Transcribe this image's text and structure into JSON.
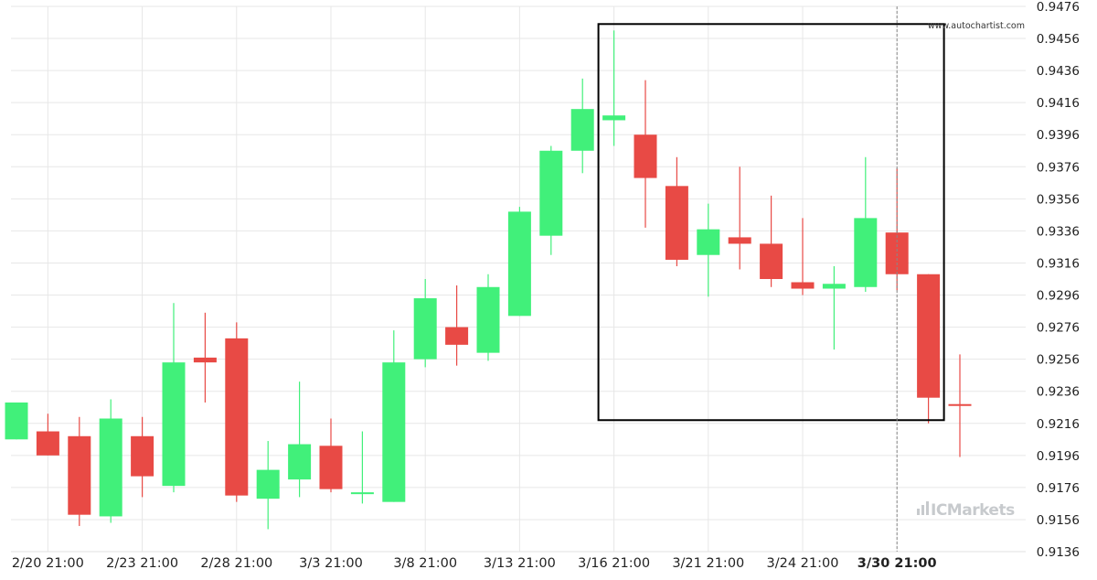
{
  "watermark": "www.autochartist.com",
  "broker_logo": "ICMarkets",
  "colors": {
    "bull": "#41f07a",
    "bear": "#e84a45",
    "grid": "#e7e7e7",
    "axis_text": "#222222",
    "box": "#000000"
  },
  "chart_data": {
    "type": "candlestick",
    "x_tick_labels": [
      "2/20 21:00",
      "2/23 21:00",
      "2/28 21:00",
      "3/3 21:00",
      "3/8 21:00",
      "3/13 21:00",
      "3/16 21:00",
      "3/21 21:00",
      "3/24 21:00",
      "3/30 21:00"
    ],
    "x_tick_candle_index": [
      1,
      4,
      7,
      10,
      13,
      16,
      19,
      22,
      25,
      28
    ],
    "highlighted_tick_index": 9,
    "y_tick_labels": [
      "0.9476",
      "0.9456",
      "0.9436",
      "0.9416",
      "0.9396",
      "0.9376",
      "0.9356",
      "0.9336",
      "0.9316",
      "0.9296",
      "0.9276",
      "0.9256",
      "0.9236",
      "0.9216",
      "0.9196",
      "0.9176",
      "0.9156",
      "0.9136"
    ],
    "ylim": [
      0.9136,
      0.9476
    ],
    "candles": [
      {
        "o": 0.9206,
        "h": 0.9229,
        "l": 0.9206,
        "c": 0.9229
      },
      {
        "o": 0.9211,
        "h": 0.9222,
        "l": 0.9196,
        "c": 0.9196
      },
      {
        "o": 0.9208,
        "h": 0.922,
        "l": 0.9152,
        "c": 0.9159
      },
      {
        "o": 0.9158,
        "h": 0.9231,
        "l": 0.9154,
        "c": 0.9219
      },
      {
        "o": 0.9208,
        "h": 0.922,
        "l": 0.917,
        "c": 0.9183
      },
      {
        "o": 0.9177,
        "h": 0.9291,
        "l": 0.9173,
        "c": 0.9254
      },
      {
        "o": 0.9257,
        "h": 0.9285,
        "l": 0.9229,
        "c": 0.9254
      },
      {
        "o": 0.9269,
        "h": 0.9279,
        "l": 0.9167,
        "c": 0.9171
      },
      {
        "o": 0.9169,
        "h": 0.9205,
        "l": 0.915,
        "c": 0.9187
      },
      {
        "o": 0.9181,
        "h": 0.9242,
        "l": 0.917,
        "c": 0.9203
      },
      {
        "o": 0.9202,
        "h": 0.9219,
        "l": 0.9173,
        "c": 0.9175
      },
      {
        "o": 0.9172,
        "h": 0.9211,
        "l": 0.9166,
        "c": 0.9173
      },
      {
        "o": 0.9167,
        "h": 0.9274,
        "l": 0.9167,
        "c": 0.9254
      },
      {
        "o": 0.9256,
        "h": 0.9306,
        "l": 0.9251,
        "c": 0.9294
      },
      {
        "o": 0.9276,
        "h": 0.9302,
        "l": 0.9252,
        "c": 0.9265
      },
      {
        "o": 0.926,
        "h": 0.9309,
        "l": 0.9255,
        "c": 0.9301
      },
      {
        "o": 0.9283,
        "h": 0.9351,
        "l": 0.9283,
        "c": 0.9348
      },
      {
        "o": 0.9333,
        "h": 0.9389,
        "l": 0.9321,
        "c": 0.9386
      },
      {
        "o": 0.9386,
        "h": 0.9431,
        "l": 0.9372,
        "c": 0.9412
      },
      {
        "o": 0.9405,
        "h": 0.9461,
        "l": 0.9389,
        "c": 0.9408
      },
      {
        "o": 0.9396,
        "h": 0.943,
        "l": 0.9338,
        "c": 0.9369
      },
      {
        "o": 0.9364,
        "h": 0.9382,
        "l": 0.9314,
        "c": 0.9318
      },
      {
        "o": 0.9321,
        "h": 0.9353,
        "l": 0.9295,
        "c": 0.9337
      },
      {
        "o": 0.9332,
        "h": 0.9376,
        "l": 0.9312,
        "c": 0.9328
      },
      {
        "o": 0.9328,
        "h": 0.9358,
        "l": 0.9301,
        "c": 0.9306
      },
      {
        "o": 0.9304,
        "h": 0.9344,
        "l": 0.9296,
        "c": 0.93
      },
      {
        "o": 0.93,
        "h": 0.9314,
        "l": 0.9262,
        "c": 0.9303
      },
      {
        "o": 0.9301,
        "h": 0.9382,
        "l": 0.9298,
        "c": 0.9344
      },
      {
        "o": 0.9335,
        "h": 0.9375,
        "l": 0.9299,
        "c": 0.9309
      },
      {
        "o": 0.9309,
        "h": 0.9309,
        "l": 0.9216,
        "c": 0.9232
      },
      {
        "o": 0.9228,
        "h": 0.9259,
        "l": 0.9195,
        "c": 0.9227
      }
    ],
    "pattern_box": {
      "start_index": 19,
      "end_index": 29,
      "top_price": 0.9465,
      "bottom_price": 0.9218
    }
  }
}
